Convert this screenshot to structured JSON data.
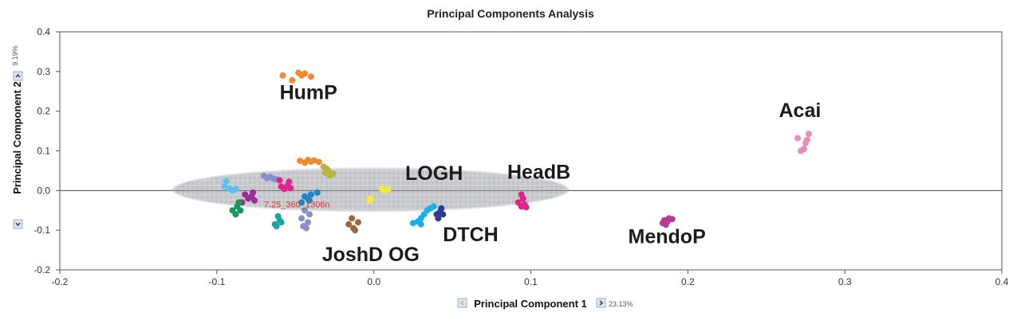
{
  "chart_data": {
    "type": "scatter",
    "title": "Principal Components Analysis",
    "xlabel": "Principal Component 1",
    "ylabel": "Principal Component 2",
    "x_variance": "23.13%",
    "y_variance": "9.19%",
    "xlim": [
      -0.2,
      0.4
    ],
    "ylim": [
      -0.2,
      0.4
    ],
    "xticks": [
      "-0.2",
      "-0.1",
      "0.0",
      "0.1",
      "0.2",
      "0.3",
      "0.4"
    ],
    "yticks": [
      "-0.2",
      "-0.1",
      "0.0",
      "0.1",
      "0.2",
      "0.3",
      "0.4"
    ],
    "grid": false,
    "confidence_ellipse": {
      "center": [
        -0.002,
        0.002
      ],
      "rx": 0.125,
      "ry": 0.052,
      "color": "#c9cbcf"
    },
    "annotation": {
      "text": "7.25_360_1306n",
      "x": -0.07,
      "y": -0.042,
      "color": "#e03a2e"
    },
    "series": [
      {
        "color": "#ee8a30",
        "points": [
          [
            -0.058,
            0.29
          ],
          [
            -0.052,
            0.278
          ],
          [
            -0.048,
            0.297
          ],
          [
            -0.046,
            0.29
          ],
          [
            -0.044,
            0.295
          ],
          [
            -0.04,
            0.287
          ]
        ]
      },
      {
        "color": "#ee8a30",
        "points": [
          [
            -0.047,
            0.075
          ],
          [
            -0.044,
            0.07
          ],
          [
            -0.042,
            0.077
          ],
          [
            -0.04,
            0.073
          ],
          [
            -0.038,
            0.076
          ],
          [
            -0.035,
            0.072
          ]
        ]
      },
      {
        "color": "#ec8ab8",
        "points": [
          [
            0.27,
            0.132
          ],
          [
            0.272,
            0.1
          ],
          [
            0.274,
            0.105
          ],
          [
            0.275,
            0.12
          ],
          [
            0.276,
            0.128
          ],
          [
            0.277,
            0.143
          ]
        ]
      },
      {
        "color": "#5bc1f0",
        "points": [
          [
            -0.094,
            0.024
          ],
          [
            -0.095,
            0.01
          ],
          [
            -0.092,
            0.005
          ],
          [
            -0.09,
            0.0
          ],
          [
            -0.088,
            0.004
          ]
        ]
      },
      {
        "color": "#8a8fc9",
        "points": [
          [
            -0.07,
            0.037
          ],
          [
            -0.068,
            0.031
          ],
          [
            -0.066,
            0.034
          ],
          [
            -0.064,
            0.03
          ],
          [
            -0.062,
            0.028
          ]
        ]
      },
      {
        "color": "#e0248e",
        "points": [
          [
            -0.06,
            0.026
          ],
          [
            -0.059,
            0.01
          ],
          [
            -0.057,
            0.004
          ],
          [
            -0.055,
            0.012
          ],
          [
            -0.054,
            0.022
          ],
          [
            -0.053,
            0.006
          ]
        ]
      },
      {
        "color": "#b8b840",
        "points": [
          [
            -0.032,
            0.06
          ],
          [
            -0.031,
            0.045
          ],
          [
            -0.029,
            0.05
          ],
          [
            -0.028,
            0.038
          ],
          [
            -0.026,
            0.042
          ],
          [
            -0.03,
            0.055
          ]
        ]
      },
      {
        "color": "#9a2d96",
        "points": [
          [
            -0.082,
            -0.01
          ],
          [
            -0.08,
            -0.02
          ],
          [
            -0.078,
            -0.015
          ],
          [
            -0.077,
            -0.005
          ],
          [
            -0.076,
            -0.025
          ],
          [
            -0.084,
            -0.03
          ]
        ]
      },
      {
        "color": "#18985a",
        "points": [
          [
            -0.09,
            -0.05
          ],
          [
            -0.088,
            -0.06
          ],
          [
            -0.087,
            -0.04
          ],
          [
            -0.085,
            -0.05
          ],
          [
            -0.086,
            -0.03
          ]
        ]
      },
      {
        "color": "#18a6a0",
        "points": [
          [
            -0.062,
            -0.09
          ],
          [
            -0.06,
            -0.075
          ],
          [
            -0.061,
            -0.065
          ],
          [
            -0.059,
            -0.08
          ],
          [
            -0.063,
            -0.085
          ]
        ]
      },
      {
        "color": "#8a8fc9",
        "points": [
          [
            -0.046,
            -0.07
          ],
          [
            -0.045,
            -0.09
          ],
          [
            -0.043,
            -0.095
          ],
          [
            -0.042,
            -0.08
          ],
          [
            -0.041,
            -0.06
          ],
          [
            -0.044,
            -0.05
          ]
        ]
      },
      {
        "color": "#1e84c6",
        "points": [
          [
            -0.046,
            -0.03
          ],
          [
            -0.044,
            -0.015
          ],
          [
            -0.042,
            -0.02
          ],
          [
            -0.041,
            -0.025
          ],
          [
            -0.04,
            -0.01
          ],
          [
            -0.036,
            -0.005
          ]
        ]
      },
      {
        "color": "#a0673a",
        "points": [
          [
            -0.016,
            -0.085
          ],
          [
            -0.014,
            -0.07
          ],
          [
            -0.013,
            -0.095
          ],
          [
            -0.012,
            -0.1
          ],
          [
            -0.01,
            -0.08
          ]
        ]
      },
      {
        "color": "#f5ea3a",
        "points": [
          [
            -0.003,
            -0.025
          ],
          [
            -0.002,
            -0.02
          ],
          [
            0.005,
            0.005
          ],
          [
            0.007,
            0.0
          ],
          [
            0.009,
            0.003
          ]
        ]
      },
      {
        "color": "#1ab1e8",
        "points": [
          [
            0.025,
            -0.082
          ],
          [
            0.028,
            -0.078
          ],
          [
            0.03,
            -0.07
          ],
          [
            0.032,
            -0.06
          ],
          [
            0.034,
            -0.05
          ],
          [
            0.036,
            -0.045
          ],
          [
            0.038,
            -0.04
          ],
          [
            0.03,
            -0.085
          ]
        ]
      },
      {
        "color": "#2f3b91",
        "points": [
          [
            0.04,
            -0.06
          ],
          [
            0.041,
            -0.07
          ],
          [
            0.042,
            -0.055
          ],
          [
            0.043,
            -0.045
          ],
          [
            0.044,
            -0.06
          ]
        ]
      },
      {
        "color": "#e0248e",
        "points": [
          [
            0.092,
            -0.03
          ],
          [
            0.094,
            -0.04
          ],
          [
            0.095,
            -0.02
          ],
          [
            0.096,
            -0.035
          ],
          [
            0.097,
            -0.042
          ],
          [
            0.094,
            -0.01
          ]
        ]
      },
      {
        "color": "#b83c98",
        "points": [
          [
            0.184,
            -0.082
          ],
          [
            0.185,
            -0.075
          ],
          [
            0.187,
            -0.078
          ],
          [
            0.188,
            -0.07
          ],
          [
            0.19,
            -0.072
          ],
          [
            0.186,
            -0.086
          ]
        ]
      }
    ],
    "labels": [
      {
        "text": "HumP",
        "x": -0.06,
        "y": 0.23
      },
      {
        "text": "Acai",
        "x": 0.258,
        "y": 0.185
      },
      {
        "text": "LOGH",
        "x": 0.02,
        "y": 0.027
      },
      {
        "text": "HeadB",
        "x": 0.085,
        "y": 0.03
      },
      {
        "text": "MendoP",
        "x": 0.162,
        "y": -0.133
      },
      {
        "text": "DTCH",
        "x": 0.044,
        "y": -0.128
      },
      {
        "text": "JoshD OG",
        "x": -0.033,
        "y": -0.178
      }
    ]
  }
}
